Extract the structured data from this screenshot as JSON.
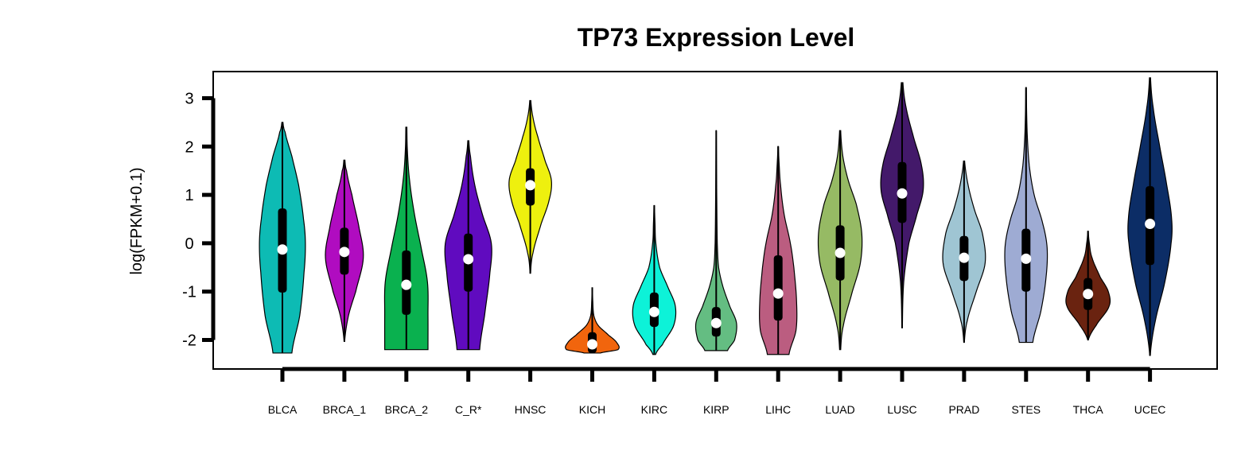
{
  "chart_data": {
    "type": "violin",
    "title": "TP73 Expression Level",
    "xlabel": "",
    "ylabel": "log(FPKM+0.1)",
    "ylim": [
      -2.6,
      3.55
    ],
    "yticks": [
      -2,
      -1,
      0,
      1,
      2,
      3
    ],
    "grid": false,
    "legend": "none",
    "categories": [
      "BLCA",
      "BRCA_1",
      "BRCA_2",
      "C_R*",
      "HNSC",
      "KICH",
      "KIRC",
      "KIRP",
      "LIHC",
      "LUAD",
      "LUSC",
      "PRAD",
      "STES",
      "THCA",
      "UCEC"
    ],
    "colors": [
      "#0dbbb4",
      "#b00cc0",
      "#0ab14f",
      "#600bbf",
      "#eef00e",
      "#f1650d",
      "#0df2d8",
      "#64bd82",
      "#bb5d80",
      "#96ba64",
      "#43196a",
      "#9fc5d3",
      "#9eabd3",
      "#6a2310",
      "#0c2d66"
    ],
    "series": [
      {
        "name": "BLCA",
        "min": -2.27,
        "max": 2.5,
        "q1": -1.02,
        "median": -0.13,
        "q3": 0.72,
        "widths": [
          [
            -2.27,
            0.35
          ],
          [
            -1.5,
            0.64
          ],
          [
            -0.6,
            0.8
          ],
          [
            0,
            0.85
          ],
          [
            0.5,
            0.78
          ],
          [
            1.2,
            0.6
          ],
          [
            1.8,
            0.35
          ],
          [
            2.3,
            0.1
          ],
          [
            2.5,
            0.02
          ]
        ]
      },
      {
        "name": "BRCA_1",
        "min": -2.03,
        "max": 1.72,
        "q1": -0.65,
        "median": -0.18,
        "q3": 0.32,
        "widths": [
          [
            -2.03,
            0.01
          ],
          [
            -1.5,
            0.15
          ],
          [
            -1.0,
            0.42
          ],
          [
            -0.3,
            0.7
          ],
          [
            0.3,
            0.55
          ],
          [
            1.0,
            0.28
          ],
          [
            1.5,
            0.08
          ],
          [
            1.72,
            0.02
          ]
        ]
      },
      {
        "name": "BRCA_2",
        "min": -2.2,
        "max": 2.4,
        "q1": -1.48,
        "median": -0.86,
        "q3": -0.15,
        "widths": [
          [
            -2.2,
            0.8
          ],
          [
            -1.5,
            0.8
          ],
          [
            -0.8,
            0.78
          ],
          [
            -0.1,
            0.55
          ],
          [
            0.6,
            0.3
          ],
          [
            1.3,
            0.12
          ],
          [
            1.9,
            0.04
          ],
          [
            2.4,
            0.02
          ]
        ]
      },
      {
        "name": "C_R*",
        "min": -2.2,
        "max": 2.12,
        "q1": -1.0,
        "median": -0.33,
        "q3": 0.2,
        "widths": [
          [
            -2.2,
            0.42
          ],
          [
            -1.5,
            0.6
          ],
          [
            -0.6,
            0.8
          ],
          [
            0,
            0.85
          ],
          [
            0.6,
            0.52
          ],
          [
            1.2,
            0.24
          ],
          [
            1.8,
            0.08
          ],
          [
            2.12,
            0.02
          ]
        ]
      },
      {
        "name": "HNSC",
        "min": -0.62,
        "max": 2.95,
        "q1": 0.78,
        "median": 1.2,
        "q3": 1.55,
        "widths": [
          [
            -0.62,
            0.01
          ],
          [
            -0.2,
            0.1
          ],
          [
            0.4,
            0.4
          ],
          [
            0.9,
            0.7
          ],
          [
            1.3,
            0.78
          ],
          [
            1.7,
            0.55
          ],
          [
            2.2,
            0.28
          ],
          [
            2.6,
            0.1
          ],
          [
            2.95,
            0.02
          ]
        ]
      },
      {
        "name": "KICH",
        "min": -2.27,
        "max": -0.92,
        "q1": -2.27,
        "median": -2.09,
        "q3": -1.84,
        "widths": [
          [
            -2.27,
            0.3
          ],
          [
            -2.2,
            0.95
          ],
          [
            -2.05,
            0.9
          ],
          [
            -1.9,
            0.6
          ],
          [
            -1.7,
            0.22
          ],
          [
            -1.5,
            0.06
          ],
          [
            -1.2,
            0.02
          ],
          [
            -0.92,
            0.01
          ]
        ]
      },
      {
        "name": "KIRC",
        "min": -2.3,
        "max": 0.78,
        "q1": -1.73,
        "median": -1.42,
        "q3": -1.02,
        "widths": [
          [
            -2.3,
            0.05
          ],
          [
            -2.1,
            0.3
          ],
          [
            -1.7,
            0.72
          ],
          [
            -1.3,
            0.78
          ],
          [
            -0.9,
            0.5
          ],
          [
            -0.5,
            0.2
          ],
          [
            0,
            0.06
          ],
          [
            0.4,
            0.03
          ],
          [
            0.78,
            0.01
          ]
        ]
      },
      {
        "name": "KIRP",
        "min": -2.22,
        "max": 2.33,
        "q1": -1.93,
        "median": -1.65,
        "q3": -1.32,
        "widths": [
          [
            -2.22,
            0.42
          ],
          [
            -2.0,
            0.68
          ],
          [
            -1.65,
            0.75
          ],
          [
            -1.3,
            0.5
          ],
          [
            -0.9,
            0.25
          ],
          [
            -0.5,
            0.09
          ],
          [
            0,
            0.04
          ],
          [
            1.0,
            0.02
          ],
          [
            2.33,
            0.005
          ]
        ]
      },
      {
        "name": "LIHC",
        "min": -2.3,
        "max": 2.0,
        "q1": -1.6,
        "median": -1.04,
        "q3": -0.25,
        "widths": [
          [
            -2.3,
            0.4
          ],
          [
            -1.8,
            0.66
          ],
          [
            -1.2,
            0.68
          ],
          [
            -0.5,
            0.58
          ],
          [
            0,
            0.45
          ],
          [
            0.6,
            0.22
          ],
          [
            1.2,
            0.09
          ],
          [
            1.6,
            0.04
          ],
          [
            2.0,
            0.01
          ]
        ]
      },
      {
        "name": "LUAD",
        "min": -2.2,
        "max": 2.33,
        "q1": -0.77,
        "median": -0.2,
        "q3": 0.37,
        "widths": [
          [
            -2.2,
            0.02
          ],
          [
            -1.7,
            0.12
          ],
          [
            -1.0,
            0.45
          ],
          [
            -0.4,
            0.75
          ],
          [
            0.2,
            0.8
          ],
          [
            0.8,
            0.6
          ],
          [
            1.3,
            0.3
          ],
          [
            1.8,
            0.1
          ],
          [
            2.33,
            0.02
          ]
        ]
      },
      {
        "name": "LUSC",
        "min": -1.75,
        "max": 3.32,
        "q1": 0.42,
        "median": 1.03,
        "q3": 1.68,
        "widths": [
          [
            -1.75,
            0.01
          ],
          [
            -0.8,
            0.06
          ],
          [
            0,
            0.25
          ],
          [
            0.6,
            0.55
          ],
          [
            1.1,
            0.78
          ],
          [
            1.6,
            0.72
          ],
          [
            2.2,
            0.42
          ],
          [
            2.8,
            0.15
          ],
          [
            3.32,
            0.03
          ]
        ]
      },
      {
        "name": "PRAD",
        "min": -2.05,
        "max": 1.7,
        "q1": -0.78,
        "median": -0.3,
        "q3": 0.15,
        "widths": [
          [
            -2.05,
            0.01
          ],
          [
            -1.6,
            0.12
          ],
          [
            -1.0,
            0.45
          ],
          [
            -0.4,
            0.78
          ],
          [
            0.2,
            0.68
          ],
          [
            0.7,
            0.38
          ],
          [
            1.2,
            0.15
          ],
          [
            1.7,
            0.02
          ]
        ]
      },
      {
        "name": "STES",
        "min": -2.05,
        "max": 3.22,
        "q1": -1.0,
        "median": -0.32,
        "q3": 0.3,
        "widths": [
          [
            -2.05,
            0.25
          ],
          [
            -1.4,
            0.55
          ],
          [
            -0.7,
            0.74
          ],
          [
            -0.1,
            0.78
          ],
          [
            0.4,
            0.62
          ],
          [
            1.0,
            0.3
          ],
          [
            1.6,
            0.12
          ],
          [
            2.3,
            0.04
          ],
          [
            3.22,
            0.01
          ]
        ]
      },
      {
        "name": "THCA",
        "min": -2.0,
        "max": 0.25,
        "q1": -1.38,
        "median": -1.05,
        "q3": -0.72,
        "widths": [
          [
            -2.0,
            0.01
          ],
          [
            -1.7,
            0.3
          ],
          [
            -1.3,
            0.78
          ],
          [
            -1.0,
            0.75
          ],
          [
            -0.7,
            0.45
          ],
          [
            -0.3,
            0.15
          ],
          [
            0,
            0.05
          ],
          [
            0.25,
            0.01
          ]
        ]
      },
      {
        "name": "UCEC",
        "min": -2.32,
        "max": 3.42,
        "q1": -0.45,
        "median": 0.4,
        "q3": 1.18,
        "widths": [
          [
            -2.32,
            0.01
          ],
          [
            -1.6,
            0.2
          ],
          [
            -0.8,
            0.55
          ],
          [
            0,
            0.78
          ],
          [
            0.5,
            0.8
          ],
          [
            1.2,
            0.62
          ],
          [
            2.0,
            0.36
          ],
          [
            2.8,
            0.12
          ],
          [
            3.42,
            0.02
          ]
        ]
      }
    ]
  }
}
